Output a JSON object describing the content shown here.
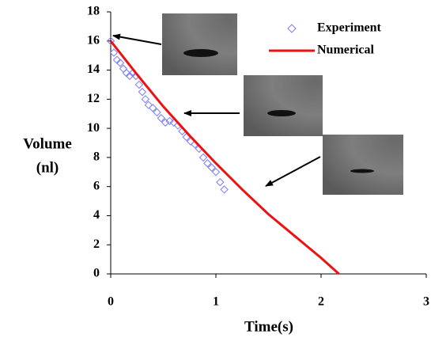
{
  "chart_data": {
    "type": "scatter-line",
    "x_label": "Time(s)",
    "y_label": [
      "Volume",
      "(nl)"
    ],
    "xlim": [
      0,
      3
    ],
    "xticks": [
      0,
      1,
      2,
      3
    ],
    "ylim": [
      0,
      18
    ],
    "yticks": [
      0,
      2,
      4,
      6,
      8,
      10,
      12,
      14,
      16,
      18
    ],
    "legend": "top-right",
    "series": [
      {
        "name": "Experiment",
        "kind": "scatter",
        "color": "#7b7bff",
        "x": [
          0,
          0.03,
          0.06,
          0.09,
          0.12,
          0.15,
          0.18,
          0.21,
          0.24,
          0.27,
          0.3,
          0.33,
          0.36,
          0.4,
          0.44,
          0.48,
          0.52,
          0.56,
          0.6,
          0.64,
          0.68,
          0.72,
          0.76,
          0.8,
          0.84,
          0.88,
          0.92,
          0.96,
          1.0,
          1.04,
          1.08
        ],
        "values": [
          16,
          15.2,
          14.7,
          14.5,
          14.1,
          13.8,
          13.6,
          13.8,
          13.6,
          13.0,
          12.5,
          12.0,
          11.6,
          11.4,
          11.1,
          10.7,
          10.4,
          10.5,
          10.4,
          10.2,
          9.8,
          9.4,
          9.1,
          8.9,
          8.6,
          8.0,
          7.6,
          7.3,
          7.0,
          6.3,
          5.8
        ]
      },
      {
        "name": "Numerical",
        "kind": "line",
        "color": "#ee1111",
        "x": [
          0,
          0.25,
          0.5,
          0.75,
          1.0,
          1.25,
          1.5,
          1.75,
          2.0,
          2.17
        ],
        "values": [
          16,
          13.7,
          11.5,
          9.5,
          7.6,
          5.8,
          4.1,
          2.6,
          1.1,
          0
        ]
      }
    ]
  }
}
